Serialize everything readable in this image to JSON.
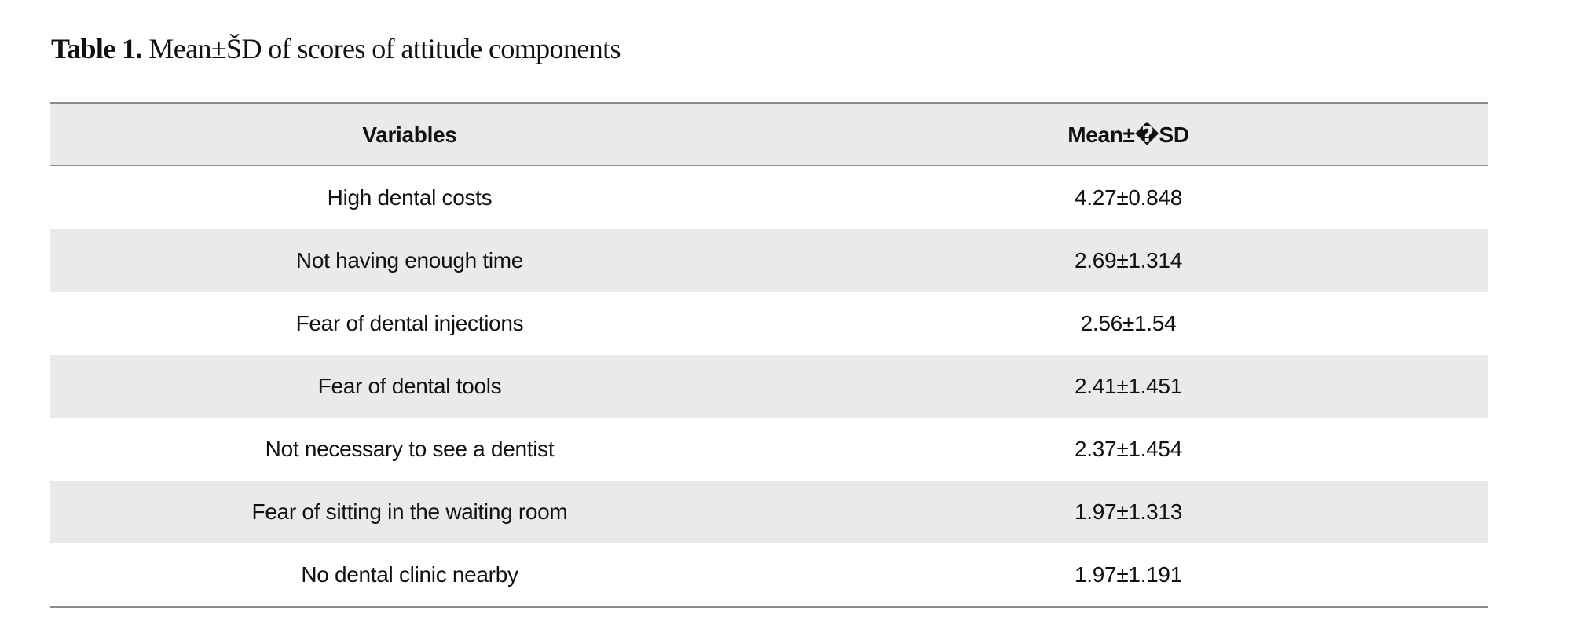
{
  "caption": {
    "label": "Table 1.",
    "text": "Mean±ŠD of scores of attitude components"
  },
  "table": {
    "headers": [
      "Variables",
      "Mean±�SD"
    ],
    "rows": [
      {
        "variable": "High dental costs",
        "mean_sd": "4.27±0.848"
      },
      {
        "variable": "Not having enough time",
        "mean_sd": "2.69±1.314"
      },
      {
        "variable": "Fear of dental injections",
        "mean_sd": "2.56±1.54"
      },
      {
        "variable": "Fear of dental tools",
        "mean_sd": "2.41±1.451"
      },
      {
        "variable": "Not necessary to see a dentist",
        "mean_sd": "2.37±1.454"
      },
      {
        "variable": "Fear of sitting in the waiting room",
        "mean_sd": "1.97±1.313"
      },
      {
        "variable": "No dental clinic nearby",
        "mean_sd": "1.97±1.191"
      }
    ]
  },
  "colors": {
    "shade": "#e9eaec",
    "rule": "#8a8a8a",
    "text": "#111111"
  }
}
